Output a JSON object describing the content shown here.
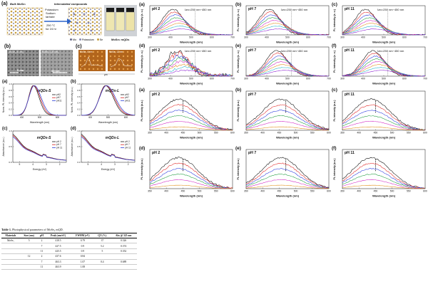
{
  "left": {
    "a": {
      "label": "(a)",
      "bulk": "Bulk MoSe₂",
      "inter": "Intercalated compounds",
      "reagent1": "Potassium",
      "reagent2": "Sodium",
      "reagent3": "tartrate",
      "temp": "250 °C",
      "time": "for 24 hr",
      "product": "MoSe₂ mQDs",
      "legend": [
        "Mo",
        "Potassium",
        "Se"
      ]
    },
    "b": {
      "label": "(b)",
      "tag1": "MoSe₂ (5 nm)",
      "tag2": "MoSe₂ (10 nm)",
      "scale1": "5 nm",
      "scale2": "10 nm"
    },
    "c": {
      "label": "(c)",
      "tag1": "MoSe₂ 6 nm",
      "tag2": "MoSe₂ 12 nm",
      "unit": "µm"
    }
  },
  "spectra": {
    "a": {
      "label": "(a)",
      "title": "mQDs-S",
      "ylabel": "Norm. PL intensity (a.u.)",
      "xlabel": "Wavelength (nm)",
      "legend": [
        "pH2",
        "pH7",
        "pH11"
      ],
      "xticks": [
        "400",
        "500",
        "600"
      ],
      "yticks": [
        "0.0",
        "0.2",
        "0.4",
        "0.6",
        "0.8",
        "1.0"
      ]
    },
    "b": {
      "label": "(b)",
      "title": "mQDs-L",
      "ylabel": "Norm. PL intensity (a.u.)",
      "xlabel": "Wavelength (nm)",
      "legend": [
        "pH2",
        "pH7",
        "pH11"
      ],
      "xticks": [
        "400",
        "500",
        "600"
      ],
      "yticks": [
        "0.0",
        "0.2",
        "0.4",
        "0.6",
        "0.8",
        "1.0"
      ]
    },
    "c": {
      "label": "(c)",
      "title": "mQDs-S",
      "ylabel": "Absorbance (a.u.)",
      "xlabel": "Energy (eV)",
      "legend": [
        "pH 2",
        "pH 7",
        "pH 11"
      ],
      "xticks": [
        "5",
        "4",
        "3",
        "2"
      ],
      "yticks": [
        "0.0",
        "0.5",
        "1.0"
      ]
    },
    "d": {
      "label": "(d)",
      "title": "mQDs-L",
      "ylabel": "Absorbance (a.u.)",
      "xlabel": "Energy (eV)",
      "legend": [
        "pH 2",
        "pH 7",
        "pH 11"
      ],
      "xticks": [
        "5",
        "4",
        "3",
        "2"
      ],
      "yticks": [
        "0.0",
        "0.5",
        "1.0"
      ]
    }
  },
  "table": {
    "caption_bold": "Table 1.",
    "caption": " Photophysical parameters of MoSe₂ mQD.",
    "headers": [
      "Materials",
      "Size (nm)",
      "pH",
      "Peak (nm/eV)",
      "FWHM (eV)",
      "QY (%)",
      "Abs @ 325 nm"
    ],
    "rows": [
      [
        "MoSe₂",
        "5",
        "2",
        "418.5",
        "0.79",
        "37",
        "0.326"
      ],
      [
        "",
        "",
        "7",
        "427.5",
        "0.9",
        "5.2",
        "0.374"
      ],
      [
        "",
        "",
        "11",
        "425.5",
        "0.9",
        "5",
        "0.352"
      ],
      [
        "",
        "12",
        "2",
        "437.6",
        "0.84",
        "",
        ""
      ],
      [
        "",
        "",
        "7",
        "463.3",
        "1.07",
        "0.4",
        "0.689"
      ],
      [
        "",
        "",
        "11",
        "463.9",
        "1.08",
        "",
        ""
      ]
    ]
  },
  "topgrid": {
    "ylabel": "PL intensity (a. u.)",
    "xlabel": "Wavelength (nm)",
    "xticks": [
      "300",
      "400",
      "500",
      "600",
      "700"
    ],
    "panels": [
      {
        "label": "(a)",
        "ph": "pH 2",
        "lambda": "λex=250 nm~450 nm"
      },
      {
        "label": "(b)",
        "ph": "pH 7",
        "lambda": "λex=250 nm~450 nm"
      },
      {
        "label": "(c)",
        "ph": "pH 11",
        "lambda": "λex=250 nm~450 nm"
      },
      {
        "label": "(d)",
        "ph": "pH 2",
        "lambda": "λex=250 nm~450 nm"
      },
      {
        "label": "(e)",
        "ph": "pH 7",
        "lambda": "λex=250 nm~450 nm"
      },
      {
        "label": "(f)",
        "ph": "pH 11",
        "lambda": "λex=250 nm~450 nm"
      }
    ]
  },
  "botgrid": {
    "ylabel": "PL intensity (a.u.)",
    "xlabel": "Wavelength (nm)",
    "xticks": [
      "350",
      "400",
      "450",
      "500",
      "550",
      "600"
    ],
    "panels": [
      {
        "label": "(a)",
        "ph": "pH 2"
      },
      {
        "label": "(b)",
        "ph": "pH 7"
      },
      {
        "label": "(c)",
        "ph": "pH 11"
      },
      {
        "label": "(d)",
        "ph": "pH 2"
      },
      {
        "label": "(e)",
        "ph": "pH 7"
      },
      {
        "label": "(f)",
        "ph": "pH 11"
      }
    ]
  },
  "colors": {
    "ph2": "#1a1a1a",
    "ph7": "#d62020",
    "ph11": "#2a3fd6",
    "c1": "#000000",
    "c2": "#e0201e",
    "c3": "#2233dd",
    "c4": "#1a9a3a",
    "c5": "#d020c0",
    "c6": "#e08a10",
    "c7": "#19b0c8",
    "c8": "#8a1ad0"
  }
}
